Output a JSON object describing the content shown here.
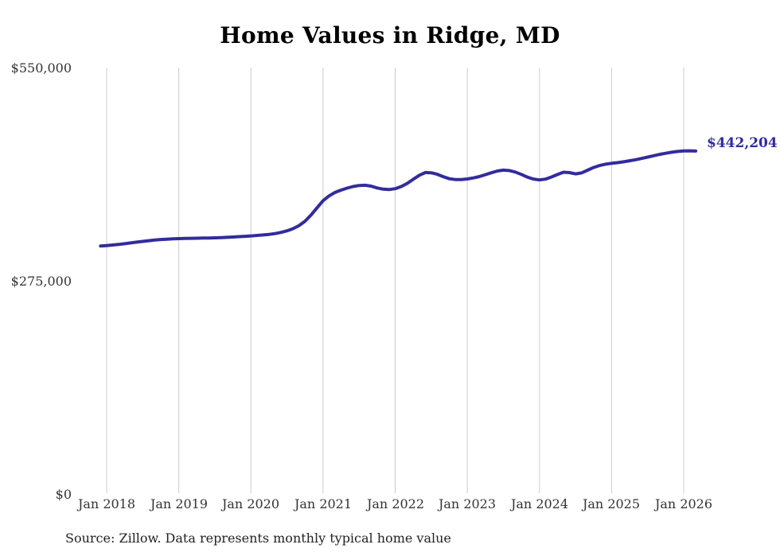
{
  "title": "Home Values in Ridge, MD",
  "end_label": "$442,204",
  "source": "Source: Zillow. Data represents monthly typical home value",
  "axis": {
    "y_ticks": [
      "$550,000",
      "$275,000",
      "$0"
    ],
    "x_ticks": [
      "Jan 2018",
      "Jan 2019",
      "Jan 2020",
      "Jan 2021",
      "Jan 2022",
      "Jan 2023",
      "Jan 2024",
      "Jan 2025",
      "Jan 2026"
    ]
  },
  "colors": {
    "line": "#322c9e",
    "grid": "#cccccc",
    "axis_text": "#333333",
    "title_text": "#000000"
  },
  "chart_data": {
    "type": "line",
    "title": "Home Values in Ridge, MD",
    "series_name": "Monthly typical home value",
    "x_start": "2017-12",
    "x_freq": "monthly",
    "x_tick_labels": [
      "Jan 2018",
      "Jan 2019",
      "Jan 2020",
      "Jan 2021",
      "Jan 2022",
      "Jan 2023",
      "Jan 2024",
      "Jan 2025",
      "Jan 2026"
    ],
    "y_tick_labels": [
      "$0",
      "$275,000",
      "$550,000"
    ],
    "ylim": [
      0,
      550000
    ],
    "grid": "vertical yearly gridlines only",
    "legend": false,
    "end_label": "$442,204",
    "last_value": 442204,
    "values": [
      319400,
      320000,
      320700,
      321500,
      322400,
      323400,
      324400,
      325400,
      326300,
      327100,
      327800,
      328300,
      328700,
      329000,
      329200,
      329400,
      329500,
      329700,
      329800,
      330000,
      330300,
      330600,
      331000,
      331500,
      332000,
      332500,
      333100,
      333700,
      334400,
      335500,
      337000,
      339000,
      341800,
      345800,
      351500,
      359500,
      368800,
      378000,
      384200,
      388700,
      391700,
      394300,
      396300,
      397600,
      398000,
      396800,
      394500,
      392900,
      392400,
      393500,
      396300,
      400300,
      405700,
      410800,
      414400,
      414100,
      412100,
      409100,
      406400,
      405400,
      405400,
      406100,
      407400,
      409200,
      411600,
      414100,
      416400,
      417500,
      417000,
      415000,
      411900,
      408400,
      406000,
      404800,
      405900,
      408600,
      411800,
      414800,
      414300,
      412700,
      413900,
      417400,
      420900,
      423500,
      425200,
      426300,
      427200,
      428300,
      429600,
      431000,
      432600,
      434300,
      436100,
      437800,
      439300,
      440600,
      441600,
      442300,
      442500,
      442204
    ]
  }
}
